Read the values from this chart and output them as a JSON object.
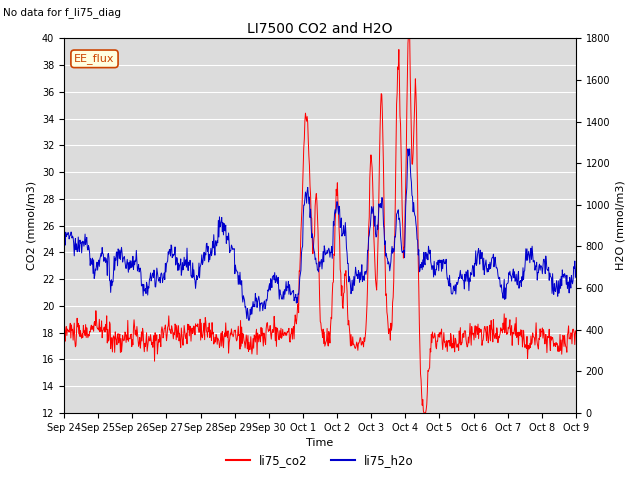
{
  "title": "LI7500 CO2 and H2O",
  "xlabel": "Time",
  "ylabel_left": "CO2 (mmol/m3)",
  "ylabel_right": "H2O (mmol/m3)",
  "ylim_left": [
    12,
    40
  ],
  "ylim_right": [
    0,
    1800
  ],
  "yticks_left": [
    12,
    14,
    16,
    18,
    20,
    22,
    24,
    26,
    28,
    30,
    32,
    34,
    36,
    38,
    40
  ],
  "yticks_right": [
    0,
    200,
    400,
    600,
    800,
    1000,
    1200,
    1400,
    1600,
    1800
  ],
  "no_data_text": "No data for f_li75_diag",
  "ee_flux_text": "EE_flux",
  "legend_labels": [
    "li75_co2",
    "li75_h2o"
  ],
  "line_colors": [
    "#ff0000",
    "#0000cc"
  ],
  "plot_bg_color": "#dcdcdc",
  "grid_color": "#ffffff",
  "tick_labels": [
    "Sep 24",
    "Sep 25",
    "Sep 26",
    "Sep 27",
    "Sep 28",
    "Sep 29",
    "Sep 30",
    "Oct 1",
    "Oct 2",
    "Oct 3",
    "Oct 4",
    "Oct 5",
    "Oct 6",
    "Oct 7",
    "Oct 8",
    "Oct 9"
  ]
}
